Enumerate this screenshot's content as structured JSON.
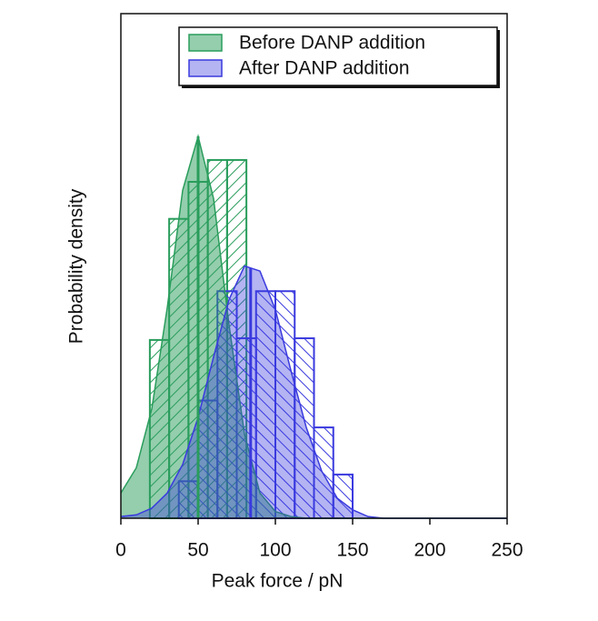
{
  "chart_data": {
    "type": "histogram",
    "xlabel": "Peak force / pN",
    "ylabel": "Probability density",
    "xlim": [
      0,
      250
    ],
    "ylim": [
      0,
      0.03
    ],
    "xticks": [
      0,
      50,
      100,
      150,
      200,
      250
    ],
    "legend": "upper right",
    "fit_x": [
      0,
      10,
      20,
      30,
      40,
      50,
      60,
      70,
      80,
      90,
      100,
      110,
      120,
      130,
      140,
      150,
      160,
      170,
      180,
      190,
      200,
      210,
      220,
      230,
      240,
      250
    ],
    "series": [
      {
        "name": "Before DANP addition",
        "color": "#2a9d5c",
        "bins": [
          18.75,
          31.25,
          43.75,
          56.25,
          68.75,
          81.25
        ],
        "values": [
          0.0106,
          0.0178,
          0.02,
          0.0213,
          0.0213
        ],
        "fit_values": [
          0.0015,
          0.003,
          0.0065,
          0.0125,
          0.0195,
          0.0227,
          0.019,
          0.0115,
          0.005,
          0.0015,
          0.0004,
          0.0001,
          0,
          0,
          0,
          0,
          0,
          0,
          0,
          0,
          0,
          0,
          0,
          0,
          0,
          0
        ],
        "mean": 50
      },
      {
        "name": "After DANP addition",
        "color": "#3a3adf",
        "bins": [
          37.5,
          50,
          62.5,
          75,
          87.5,
          100,
          112.5,
          125,
          137.5,
          150
        ],
        "values": [
          0.0022,
          0.007,
          0.0135,
          0.0107,
          0.0135,
          0.0135,
          0.0107,
          0.0054,
          0.0026
        ],
        "fit_values": [
          0.0001,
          0.0002,
          0.0006,
          0.0015,
          0.0032,
          0.006,
          0.0096,
          0.013,
          0.015,
          0.0147,
          0.0124,
          0.0088,
          0.0054,
          0.0028,
          0.0012,
          0.0005,
          0.0001,
          0,
          0,
          0,
          0,
          0,
          0,
          0,
          0,
          0
        ],
        "mean": 84
      }
    ]
  }
}
